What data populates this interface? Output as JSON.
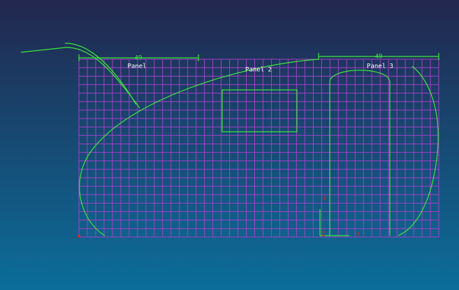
{
  "panels": [
    {
      "label": "Panel"
    },
    {
      "label": "Panel 2"
    },
    {
      "label": "Panel 3"
    }
  ],
  "dimensions": [
    {
      "label": "49"
    },
    {
      "label": "49"
    }
  ],
  "axes": [
    {
      "label": "Y"
    },
    {
      "label": "Z"
    },
    {
      "label": "X"
    }
  ]
}
